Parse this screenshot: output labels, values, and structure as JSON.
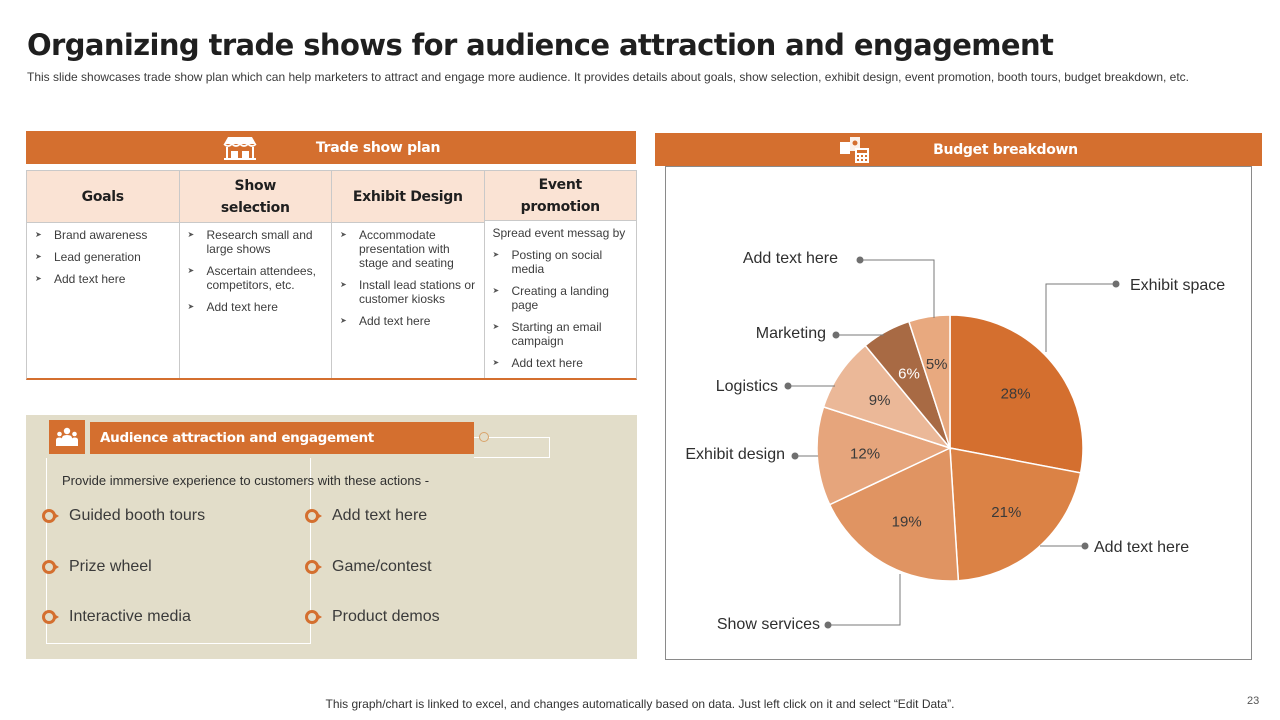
{
  "title": "Organizing trade shows for audience attraction and engagement",
  "subtitle": "This slide showcases trade show plan which can help marketers to attract and engage more audience. It provides details about goals, show selection, exhibit design, event promotion, booth tours, budget breakdown, etc.",
  "plan": {
    "header": "Trade show plan",
    "columns": [
      {
        "heading": "Goals",
        "intro": "",
        "items": [
          "Brand awareness",
          "Lead generation",
          "Add text here"
        ]
      },
      {
        "heading": "Show selection",
        "intro": "",
        "items": [
          "Research small and large shows",
          "Ascertain attendees, competitors, etc.",
          "Add text here"
        ]
      },
      {
        "heading": "Exhibit Design",
        "intro": "",
        "items": [
          "Accommodate presentation with stage and seating",
          "Install lead stations or customer kiosks",
          "Add text here"
        ]
      },
      {
        "heading": "Event promotion",
        "intro": "Spread event messag by",
        "items": [
          "Posting on social media",
          "Creating a landing page",
          "Starting an email campaign",
          "Add text here"
        ]
      }
    ]
  },
  "audience": {
    "header": "Audience attraction and engagement",
    "intro": "Provide immersive experience to customers with these actions -",
    "actions_left": [
      "Guided booth tours",
      "Prize wheel",
      "Interactive media"
    ],
    "actions_right": [
      "Add text here",
      "Game/contest",
      "Product demos"
    ]
  },
  "budget": {
    "header": "Budget breakdown"
  },
  "chart_data": {
    "type": "pie",
    "title": "Budget breakdown",
    "slices": [
      {
        "label": "Exhibit space",
        "value": 28,
        "color": "#d46f2f"
      },
      {
        "label": "Add text here",
        "value": 21,
        "color": "#db8245"
      },
      {
        "label": "Show services",
        "value": 19,
        "color": "#e09462"
      },
      {
        "label": "Exhibit design",
        "value": 12,
        "color": "#e6a57c"
      },
      {
        "label": "Logistics",
        "value": 9,
        "color": "#ebb898"
      },
      {
        "label": "Marketing",
        "value": 6,
        "color": "#a86a44"
      },
      {
        "label": "Add text here",
        "value": 5,
        "color": "#e8a97f"
      }
    ]
  },
  "footer": "This graph/chart is linked to excel, and changes automatically based on data. Just left click on it and select “Edit Data”.",
  "page_number": "23"
}
